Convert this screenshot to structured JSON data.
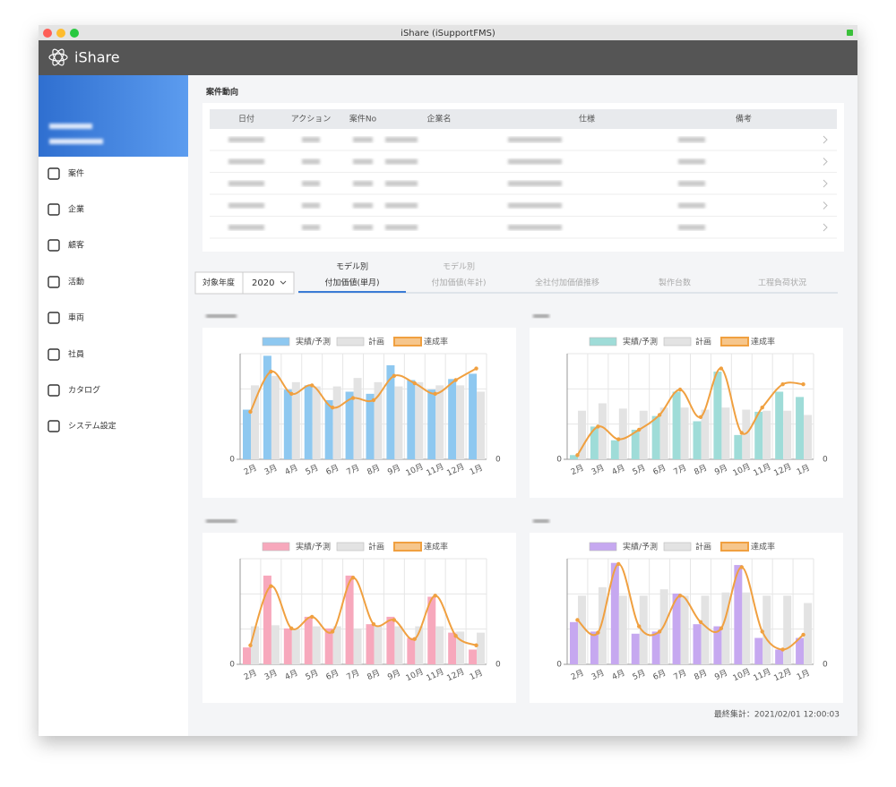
{
  "window_title": "iShare (iSupportFMS)",
  "app_name": "iShare",
  "menu": [
    "案件",
    "企業",
    "顧客",
    "活動",
    "車両",
    "社員",
    "カタログ",
    "システム設定"
  ],
  "section_title": "案件動向",
  "table": {
    "headers": [
      "日付",
      "アクション",
      "案件No",
      "企業名",
      "仕様",
      "備考"
    ]
  },
  "filter": {
    "label": "対象年度",
    "year": "2020"
  },
  "tabs": [
    {
      "sub": "モデル別",
      "label": "付加価値(単月)"
    },
    {
      "sub": "モデル別",
      "label": "付加価値(年計)"
    },
    {
      "label": "全社付加価値推移"
    },
    {
      "label": "製作台数"
    },
    {
      "label": "工程負荷状況"
    }
  ],
  "chart_data": [
    {
      "type": "bar",
      "categories": [
        "2月",
        "3月",
        "4月",
        "5月",
        "6月",
        "7月",
        "8月",
        "9月",
        "10月",
        "11月",
        "12月",
        "1月"
      ],
      "ylim": [
        0,
        100
      ],
      "yticks": [
        0
      ],
      "y2lim": [
        0,
        100
      ],
      "y2ticks": [
        0
      ],
      "series": [
        {
          "name": "実績/予測",
          "color": "#8ec8f0",
          "values": [
            47,
            98,
            66,
            70,
            56,
            64,
            62,
            89,
            75,
            66,
            76,
            81
          ]
        },
        {
          "name": "計画",
          "color": "#e3e3e3",
          "values": [
            70,
            79,
            73,
            69,
            69,
            77,
            73,
            69,
            73,
            70,
            70,
            64
          ]
        },
        {
          "name": "達成率",
          "color": "#f0a040",
          "type": "line",
          "axis": "y2",
          "values": [
            45,
            83,
            62,
            70,
            49,
            58,
            56,
            79,
            72,
            62,
            75,
            86
          ]
        }
      ]
    },
    {
      "type": "bar",
      "categories": [
        "2月",
        "3月",
        "4月",
        "5月",
        "6月",
        "7月",
        "8月",
        "9月",
        "10月",
        "11月",
        "12月",
        "1月"
      ],
      "ylim": [
        0,
        100
      ],
      "yticks": [
        0
      ],
      "y2lim": [
        0,
        100
      ],
      "y2ticks": [
        0
      ],
      "series": [
        {
          "name": "実績/予測",
          "color": "#9fdcd8",
          "values": [
            4,
            31,
            18,
            28,
            41,
            64,
            36,
            83,
            23,
            45,
            64,
            59
          ]
        },
        {
          "name": "計画",
          "color": "#e3e3e3",
          "values": [
            46,
            53,
            48,
            46,
            49,
            49,
            47,
            49,
            47,
            46,
            46,
            42
          ]
        },
        {
          "name": "達成率",
          "color": "#f0a040",
          "type": "line",
          "axis": "y2",
          "values": [
            4,
            31,
            19,
            28,
            42,
            66,
            40,
            86,
            25,
            49,
            71,
            71
          ]
        }
      ]
    },
    {
      "type": "bar",
      "categories": [
        "2月",
        "3月",
        "4月",
        "5月",
        "6月",
        "7月",
        "8月",
        "9月",
        "10月",
        "11月",
        "12月",
        "1月"
      ],
      "ylim": [
        0,
        100
      ],
      "yticks": [
        0
      ],
      "y2lim": [
        0,
        100
      ],
      "y2ticks": [
        0
      ],
      "series": [
        {
          "name": "実績/予測",
          "color": "#f7a8bc",
          "values": [
            16,
            84,
            34,
            45,
            34,
            84,
            38,
            45,
            25,
            64,
            30,
            14
          ]
        },
        {
          "name": "計画",
          "color": "#e3e3e3",
          "values": [
            36,
            37,
            33,
            36,
            36,
            34,
            36,
            36,
            36,
            36,
            31,
            30
          ]
        },
        {
          "name": "達成率",
          "color": "#f0a040",
          "type": "line",
          "axis": "y2",
          "values": [
            18,
            74,
            34,
            45,
            31,
            82,
            38,
            42,
            24,
            65,
            27,
            18
          ]
        }
      ]
    },
    {
      "type": "bar",
      "categories": [
        "2月",
        "3月",
        "4月",
        "5月",
        "6月",
        "7月",
        "8月",
        "9月",
        "10月",
        "11月",
        "12月",
        "1月"
      ],
      "ylim": [
        0,
        100
      ],
      "yticks": [
        0
      ],
      "y2lim": [
        0,
        100
      ],
      "y2ticks": [
        0
      ],
      "series": [
        {
          "name": "実績/予測",
          "color": "#c6a8f0",
          "values": [
            40,
            31,
            96,
            29,
            31,
            67,
            38,
            36,
            94,
            25,
            14,
            25
          ]
        },
        {
          "name": "計画",
          "color": "#e3e3e3",
          "values": [
            65,
            73,
            65,
            65,
            71,
            65,
            65,
            68,
            68,
            65,
            65,
            58
          ]
        },
        {
          "name": "達成率",
          "color": "#f0a040",
          "type": "line",
          "axis": "y2",
          "values": [
            42,
            30,
            95,
            36,
            31,
            65,
            40,
            34,
            92,
            31,
            14,
            28
          ]
        }
      ]
    }
  ],
  "footer": "最終集計：2021/02/01 12:00:03"
}
